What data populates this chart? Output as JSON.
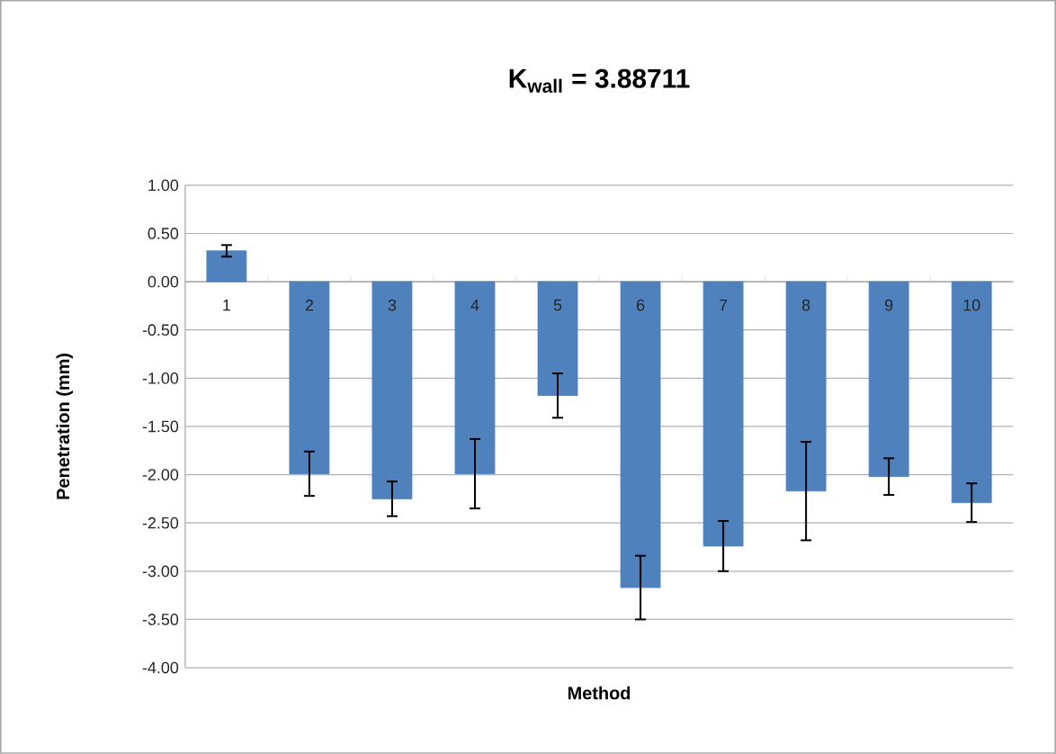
{
  "chart_data": {
    "type": "bar",
    "title": "K$_{wall}$ = 3.88711",
    "xlabel": "Method",
    "ylabel": "Penetration (mm)",
    "categories": [
      "1",
      "2",
      "3",
      "4",
      "5",
      "6",
      "7",
      "8",
      "9",
      "10"
    ],
    "values": [
      0.32,
      -1.99,
      -2.25,
      -1.99,
      -1.18,
      -3.17,
      -2.74,
      -2.17,
      -2.02,
      -2.29
    ],
    "errors": [
      0.06,
      0.23,
      0.18,
      0.36,
      0.23,
      0.33,
      0.26,
      0.51,
      0.19,
      0.2
    ],
    "color": "#4f81bd",
    "ylim": [
      -4,
      1
    ],
    "yticks": [
      {
        "value": 1,
        "label": "1.00"
      },
      {
        "value": 0.5,
        "label": "0.50"
      },
      {
        "value": 0,
        "label": "0.00"
      },
      {
        "value": -0.5,
        "label": "-0.50"
      },
      {
        "value": -1,
        "label": "-1.00"
      },
      {
        "value": -1.5,
        "label": "-1.50"
      },
      {
        "value": -2,
        "label": "-2.00"
      },
      {
        "value": -2.5,
        "label": "-2.50"
      },
      {
        "value": -3,
        "label": "-3.00"
      },
      {
        "value": -3.5,
        "label": "-3.50"
      },
      {
        "value": -4,
        "label": "-4.00"
      }
    ],
    "grid": "y"
  }
}
